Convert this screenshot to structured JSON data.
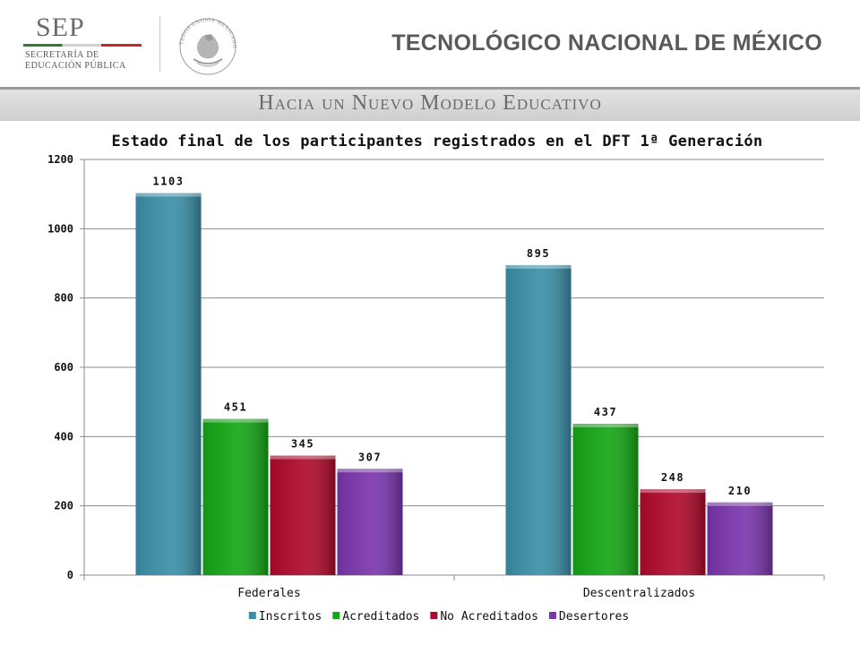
{
  "header": {
    "sep_logo_text": "SEP",
    "sep_subtitle_line1": "SECRETARÍA DE",
    "sep_subtitle_line2": "EDUCACIÓN PÚBLICA",
    "seal_text": "ESTADOS UNIDOS MEXICANOS",
    "institution": "TECNOLÓGICO NACIONAL DE MÉXICO",
    "band_text": "Hacia un Nuevo Modelo Educativo"
  },
  "chart_data": {
    "type": "bar",
    "title": "Estado final de los participantes registrados en el DFT 1ª Generación",
    "xlabel": "",
    "ylabel": "",
    "categories": [
      "Federales",
      "Descentralizados"
    ],
    "series": [
      {
        "name": "Inscritos",
        "values": [
          1103,
          895
        ],
        "color": "#3a8fa8"
      },
      {
        "name": "Acreditados",
        "values": [
          451,
          437
        ],
        "color": "#15a615"
      },
      {
        "name": "No Acreditados",
        "values": [
          345,
          248
        ],
        "color": "#b0082a"
      },
      {
        "name": "Desertores",
        "values": [
          307,
          210
        ],
        "color": "#7a35ad"
      }
    ],
    "ylim": [
      0,
      1200
    ],
    "yticks": [
      0,
      200,
      400,
      600,
      800,
      1000,
      1200
    ],
    "grid": true,
    "legend_position": "bottom",
    "data_labels": true
  }
}
